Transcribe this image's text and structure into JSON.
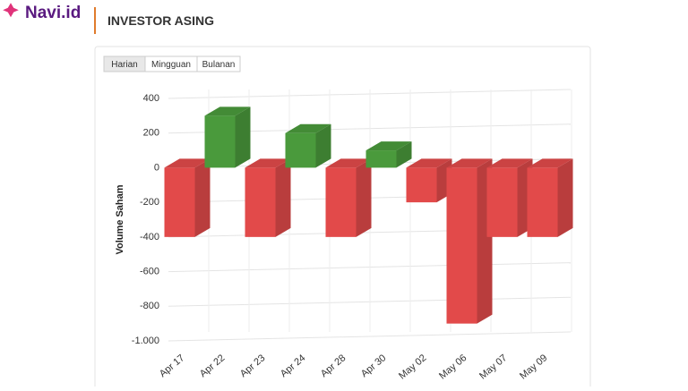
{
  "header": {
    "logo": "Navi.id",
    "title": "INVESTOR ASING"
  },
  "tabs": [
    "Harian",
    "Mingguan",
    "Bulanan"
  ],
  "chart_data": {
    "type": "bar3d",
    "y_label": "Volume Saham",
    "categories": [
      "Apr 17",
      "Apr 22",
      "Apr 23",
      "Apr 24",
      "Apr 28",
      "Apr 30",
      "May 02",
      "May 06",
      "May 07",
      "May 09"
    ],
    "values": [
      -400,
      300,
      -400,
      200,
      -400,
      100,
      -200,
      -900,
      -400,
      -400
    ],
    "positive_color": "#4a9a3c",
    "negative_color": "#e24a4a",
    "ylim": [
      -1000,
      400
    ],
    "yticks": [
      {
        "value": -1000,
        "label": "-1.000"
      },
      -800,
      -600,
      -400,
      -200,
      0,
      200,
      400
    ],
    "grid": true
  }
}
